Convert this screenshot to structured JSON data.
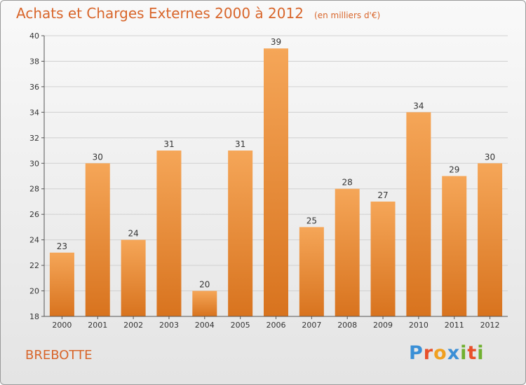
{
  "title": "Achats et Charges Externes 2000 à 2012",
  "subtitle": "(en milliers d'€)",
  "commune": "BREBOTTE",
  "logo": {
    "letters": [
      "P",
      "r",
      "o",
      "x",
      "i",
      "t",
      "i"
    ],
    "colors": [
      "#3a8fd6",
      "#e8502a",
      "#f0a020",
      "#3a8fd6",
      "#70b030",
      "#e8502a",
      "#70b030"
    ]
  },
  "colors": {
    "bar_top": "#f5a658",
    "bar_bottom": "#d8731e",
    "title": "#d8652a"
  },
  "chart_data": {
    "type": "bar",
    "title": "Achats et Charges Externes 2000 à 2012",
    "subtitle": "(en milliers d'€)",
    "categories": [
      "2000",
      "2001",
      "2002",
      "2003",
      "2004",
      "2005",
      "2006",
      "2007",
      "2008",
      "2009",
      "2010",
      "2011",
      "2012"
    ],
    "values": [
      23,
      30,
      24,
      31,
      20,
      31,
      39,
      25,
      28,
      27,
      34,
      29,
      30
    ],
    "ylim": [
      18,
      40
    ],
    "yticks": [
      18,
      20,
      22,
      24,
      26,
      28,
      30,
      32,
      34,
      36,
      38,
      40
    ],
    "grid": "horizontal",
    "data_labels": true
  }
}
